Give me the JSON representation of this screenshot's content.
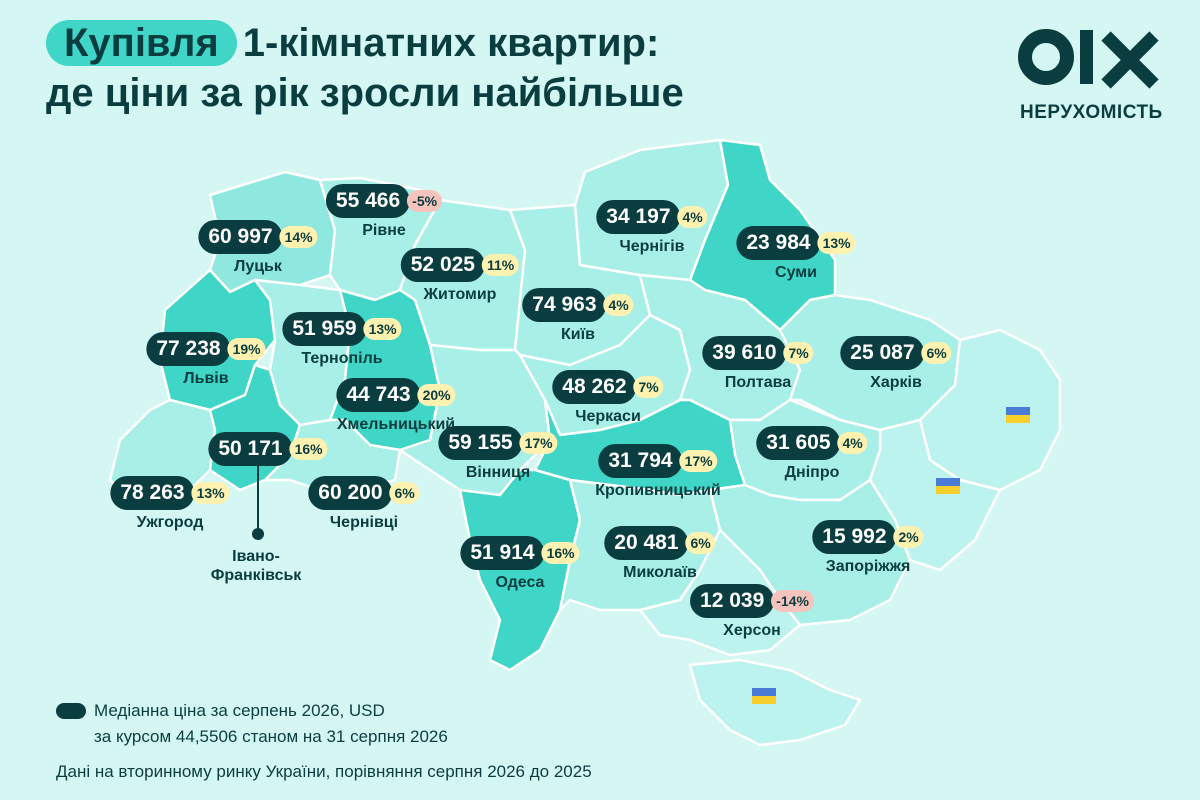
{
  "title": {
    "highlight": "Купівля",
    "line1_rest": "1-кімнатних квартир:",
    "line2": "де ціни за рік зросли найбільше"
  },
  "logo": {
    "brand": "olx",
    "subtitle": "НЕРУХОМІСТЬ"
  },
  "colors": {
    "background": "#d4f7f4",
    "title_highlight": "#3fd6c8",
    "price_chip": "#0a3d3f",
    "pct_positive": "#fff2b0",
    "pct_negative": "#f6c3bd"
  },
  "regions": [
    {
      "city": "Луцьк",
      "price": "60 997",
      "change": "14%"
    },
    {
      "city": "Рівне",
      "price": "55 466",
      "change": "-5%"
    },
    {
      "city": "Житомир",
      "price": "52 025",
      "change": "11%"
    },
    {
      "city": "Чернігів",
      "price": "34 197",
      "change": "4%"
    },
    {
      "city": "Суми",
      "price": "23 984",
      "change": "13%"
    },
    {
      "city": "Київ",
      "price": "74 963",
      "change": "4%"
    },
    {
      "city": "Тернопіль",
      "price": "51 959",
      "change": "13%"
    },
    {
      "city": "Львів",
      "price": "77 238",
      "change": "19%"
    },
    {
      "city": "Хмельницький",
      "price": "44 743",
      "change": "20%"
    },
    {
      "city": "Полтава",
      "price": "39 610",
      "change": "7%"
    },
    {
      "city": "Харків",
      "price": "25 087",
      "change": "6%"
    },
    {
      "city": "Черкаси",
      "price": "48 262",
      "change": "7%"
    },
    {
      "city": "Вінниця",
      "price": "59 155",
      "change": "17%"
    },
    {
      "city": "Кропивницький",
      "price": "31 794",
      "change": "17%"
    },
    {
      "city": "Дніпро",
      "price": "31 605",
      "change": "4%"
    },
    {
      "city": "",
      "price": "50 171",
      "change": "16%"
    },
    {
      "city": "Ужгород",
      "price": "78 263",
      "change": "13%"
    },
    {
      "city": "Чернівці",
      "price": "60 200",
      "change": "6%"
    },
    {
      "city": "Одеса",
      "price": "51 914",
      "change": "16%"
    },
    {
      "city": "Миколаїв",
      "price": "20 481",
      "change": "6%"
    },
    {
      "city": "Запоріжжя",
      "price": "15 992",
      "change": "2%"
    },
    {
      "city": "Херсон",
      "price": "12 039",
      "change": "-14%"
    }
  ],
  "ivano_label": "Івано-Франківськ",
  "legend": {
    "line1": "Медіанна ціна за серпень 2026, USD",
    "line2": "за курсом 44,5506 станом на 31 серпня 2026"
  },
  "footnote": "Дані на вторинному ринку України, порівняння серпня 2026 до 2025"
}
